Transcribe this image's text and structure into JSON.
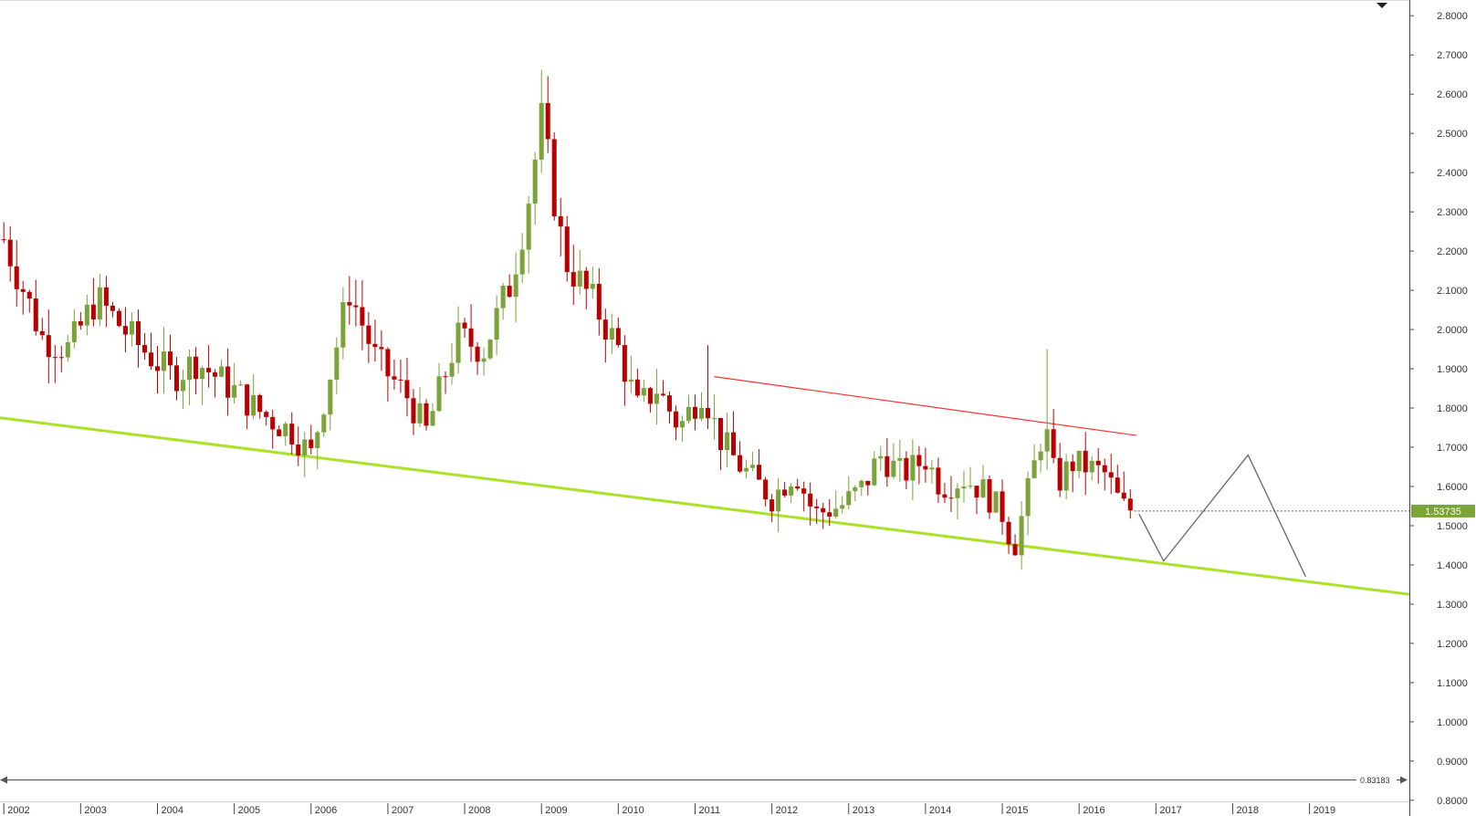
{
  "chart_data": {
    "type": "candlestick",
    "interval": "monthly",
    "x_tick_labels": [
      "2002",
      "2003",
      "2004",
      "2005",
      "2006",
      "2007",
      "2008",
      "2009",
      "2010",
      "2011",
      "2012",
      "2013",
      "2014",
      "2015",
      "2016",
      "2017",
      "2018",
      "2019"
    ],
    "y_tick_labels": [
      "2.8000",
      "2.7000",
      "2.6000",
      "2.5000",
      "2.4000",
      "2.3000",
      "2.2000",
      "2.1000",
      "2.0000",
      "1.9000",
      "1.8000",
      "1.7000",
      "1.6000",
      "1.5000",
      "1.4000",
      "1.3000",
      "1.2000",
      "1.1000",
      "1.0000",
      "0.9000",
      "0.8000"
    ],
    "xlim": [
      2001.95,
      2020.3
    ],
    "ylim": [
      0.76,
      2.84
    ],
    "ytick_min": 0.8,
    "ytick_max": 2.8,
    "ytick_step": 0.1,
    "grid": false,
    "colors": {
      "up": "#7aa33a",
      "down": "#b80000",
      "support": "#aae22a",
      "resistance": "#ff3333",
      "projection": "#666666",
      "price_tag": "#7aa33a",
      "axis": "#444444"
    },
    "last_price": {
      "label": "1.53735",
      "value": 1.53735
    },
    "scroll_value": "0.83183",
    "support_line": {
      "x": [
        2001.95,
        2020.3
      ],
      "y": [
        1.775,
        1.325
      ]
    },
    "resistance_line": {
      "x": [
        2011.25,
        2016.75
      ],
      "y": [
        1.88,
        1.73
      ]
    },
    "projection_path": {
      "x": [
        2016.78,
        2017.1,
        2018.2,
        2018.95
      ],
      "y": [
        1.53,
        1.41,
        1.68,
        1.37
      ]
    },
    "keyframes": {
      "t": [
        2002.0,
        2002.5,
        2002.85,
        2003.2,
        2003.7,
        2004.2,
        2004.5,
        2004.9,
        2005.4,
        2005.75,
        2006.0,
        2006.5,
        2006.85,
        2007.25,
        2007.5,
        2007.9,
        2008.25,
        2008.6,
        2008.8,
        2009.0,
        2009.3,
        2009.7,
        2010.0,
        2010.25,
        2010.5,
        2010.8,
        2011.1,
        2011.3,
        2011.55,
        2011.75,
        2012.0,
        2012.3,
        2012.55,
        2012.9,
        2013.2,
        2013.4,
        2013.7,
        2014.0,
        2014.2,
        2014.5,
        2014.75,
        2015.0,
        2015.15,
        2015.4,
        2015.55,
        2015.7,
        2015.9,
        2016.1,
        2016.35,
        2016.55,
        2016.72
      ],
      "p": [
        2.23,
        1.98,
        1.95,
        2.08,
        1.97,
        1.88,
        1.92,
        1.86,
        1.78,
        1.74,
        1.68,
        2.1,
        1.92,
        1.83,
        1.74,
        1.98,
        1.95,
        2.12,
        2.3,
        2.53,
        2.18,
        2.06,
        1.95,
        1.8,
        1.85,
        1.75,
        1.85,
        1.73,
        1.66,
        1.62,
        1.57,
        1.64,
        1.53,
        1.55,
        1.6,
        1.68,
        1.63,
        1.67,
        1.6,
        1.62,
        1.59,
        1.53,
        1.44,
        1.64,
        1.76,
        1.6,
        1.66,
        1.65,
        1.63,
        1.55,
        1.537
      ]
    },
    "wick_spikes": [
      {
        "t": 2015.55,
        "value": 1.95
      },
      {
        "t": 2011.2,
        "value": 1.96
      },
      {
        "t": 2009.02,
        "value": 2.58
      }
    ]
  }
}
